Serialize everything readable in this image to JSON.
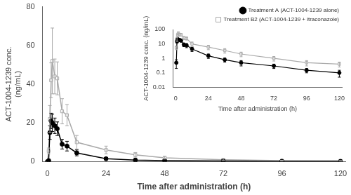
{
  "chart_data": [
    {
      "type": "line",
      "x": [
        0,
        0.5,
        1,
        1.5,
        2,
        3,
        4,
        6,
        8,
        12,
        24,
        36,
        48,
        72,
        96,
        120
      ],
      "series": [
        {
          "color": "#000000",
          "marker": "circle",
          "values": [
            0,
            0.5,
            15.0,
            21.0,
            20.0,
            18.5,
            17.0,
            9.0,
            8.0,
            4.5,
            1.5,
            0.8,
            0.5,
            0.3,
            0.15,
            0.1
          ],
          "errors": [
            0,
            0.3,
            3.5,
            4.0,
            4.5,
            4.0,
            3.5,
            2.5,
            2.5,
            1.5,
            0.5,
            0.25,
            0.2,
            0.1,
            0.05,
            0.05
          ]
        },
        {
          "color": "#aaaaaa",
          "marker": "open-square",
          "values": [
            0,
            5.5,
            22.0,
            42.0,
            52.0,
            44.0,
            43.0,
            26.0,
            24.0,
            10.0,
            6.0,
            3.5,
            2.0,
            1.0,
            0.5,
            0.4
          ],
          "errors": [
            0,
            1.5,
            7.0,
            9.0,
            17.0,
            9.0,
            8.5,
            6.5,
            5.5,
            3.5,
            2.0,
            1.2,
            0.7,
            0.35,
            0.2,
            0.15
          ]
        }
      ],
      "xlabel": "Time after administration (h)",
      "ylabel": "ACT-1004-1239 conc.\n(ng/mL)",
      "xlim": [
        -2,
        122
      ],
      "xticks": [
        0,
        24,
        48,
        72,
        96,
        120
      ],
      "ylim": [
        0,
        80
      ],
      "yticks": [
        0,
        20,
        40,
        60,
        80
      ],
      "grid": false
    },
    {
      "type": "line",
      "x": [
        0,
        0.5,
        1,
        1.5,
        2,
        3,
        4,
        6,
        8,
        12,
        24,
        36,
        48,
        72,
        96,
        120
      ],
      "series": [
        {
          "name": "Treatment A (ACT-1004-1239 alone)",
          "color": "#000000",
          "marker": "circle",
          "values": [
            null,
            0.5,
            15.0,
            21.0,
            20.0,
            18.5,
            17.0,
            9.0,
            8.0,
            4.5,
            1.5,
            0.8,
            0.5,
            0.3,
            0.15,
            0.1
          ],
          "errors": [
            0,
            0.3,
            3.5,
            4.0,
            4.5,
            4.0,
            3.5,
            2.5,
            2.5,
            1.5,
            0.5,
            0.25,
            0.2,
            0.1,
            0.05,
            0.05
          ]
        },
        {
          "name": "Treatment B2 (ACT-1004-1239 + itraconazole)",
          "color": "#aaaaaa",
          "marker": "open-square",
          "values": [
            null,
            5.5,
            22.0,
            42.0,
            52.0,
            44.0,
            43.0,
            26.0,
            24.0,
            10.0,
            6.0,
            3.5,
            2.0,
            1.0,
            0.5,
            0.4
          ],
          "errors": [
            0,
            1.5,
            7.0,
            9.0,
            17.0,
            9.0,
            8.5,
            6.5,
            5.5,
            3.5,
            2.0,
            1.2,
            0.7,
            0.35,
            0.2,
            0.15
          ]
        }
      ],
      "xlabel": "Time after administration (h)",
      "ylabel": "ACT-1004-1239 conc. (ng/mL)",
      "xlim": [
        -2,
        122
      ],
      "xticks": [
        0,
        24,
        48,
        72,
        96,
        120
      ],
      "log": "y",
      "ylim": [
        0.01,
        100
      ],
      "yticks": [
        0.01,
        0.1,
        1,
        10,
        100
      ],
      "grid": false,
      "legend": "upper right"
    }
  ]
}
